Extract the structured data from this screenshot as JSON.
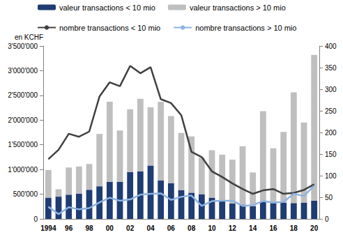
{
  "chart_data": {
    "type": "bar",
    "stacked": true,
    "legend": "top",
    "grid": false,
    "y_label": "en KCHF",
    "categories": [
      "1994",
      null,
      "96",
      null,
      "98",
      null,
      "00",
      null,
      "02",
      null,
      "04",
      null,
      "06",
      null,
      "08",
      null,
      "10",
      null,
      "12",
      null,
      "14",
      null,
      "16",
      null,
      "18",
      null,
      "20"
    ],
    "ylim": [
      0,
      3500000
    ],
    "yticks": [
      0,
      {
        "value": 500000,
        "label": "500'000"
      },
      {
        "value": 1000000,
        "label": "1'000'000"
      },
      {
        "value": 1500000,
        "label": "1'500'000"
      },
      {
        "value": 2000000,
        "label": "2'000'000"
      },
      {
        "value": 2500000,
        "label": "2'500'000"
      },
      {
        "value": 3000000,
        "label": "3'000'000"
      },
      {
        "value": 3500000,
        "label": "3'500'000"
      }
    ],
    "y2lim": [
      0,
      400
    ],
    "y2ticks": [
      0,
      50,
      100,
      150,
      200,
      250,
      300,
      350,
      400
    ],
    "series": [
      {
        "name": "valeur transactions < 10 mio",
        "type": "bar",
        "color": "#1f3c73",
        "values": [
          430000,
          450000,
          490000,
          510000,
          590000,
          660000,
          750000,
          750000,
          950000,
          960000,
          1080000,
          780000,
          720000,
          580000,
          530000,
          500000,
          430000,
          380000,
          310000,
          290000,
          260000,
          340000,
          320000,
          330000,
          320000,
          330000,
          370000
        ]
      },
      {
        "name": "valeur transactions > 10 mio",
        "type": "bar",
        "color": "#bfbfbf",
        "values": [
          560000,
          150000,
          550000,
          550000,
          520000,
          1060000,
          1620000,
          1040000,
          1270000,
          1470000,
          1180000,
          1590000,
          1360000,
          1160000,
          1140000,
          740000,
          960000,
          920000,
          890000,
          1180000,
          680000,
          1840000,
          1110000,
          1430000,
          2240000,
          1620000,
          2950000
        ]
      },
      {
        "name": "nombre transactions < 10 mio",
        "type": "line",
        "axis": "y2",
        "color": "#404040",
        "values": [
          138,
          160,
          197,
          190,
          202,
          283,
          316,
          307,
          354,
          337,
          351,
          277,
          268,
          240,
          155,
          143,
          110,
          97,
          82,
          69,
          58,
          66,
          69,
          58,
          60,
          67,
          80
        ]
      },
      {
        "name": "nombre transactions > 10 mio",
        "type": "line",
        "axis": "y2",
        "color": "#8db3e2",
        "values": [
          28,
          11,
          27,
          22,
          25,
          38,
          49,
          42,
          45,
          56,
          58,
          59,
          44,
          51,
          54,
          30,
          41,
          42,
          42,
          30,
          32,
          41,
          38,
          39,
          58,
          53,
          77
        ]
      }
    ]
  }
}
